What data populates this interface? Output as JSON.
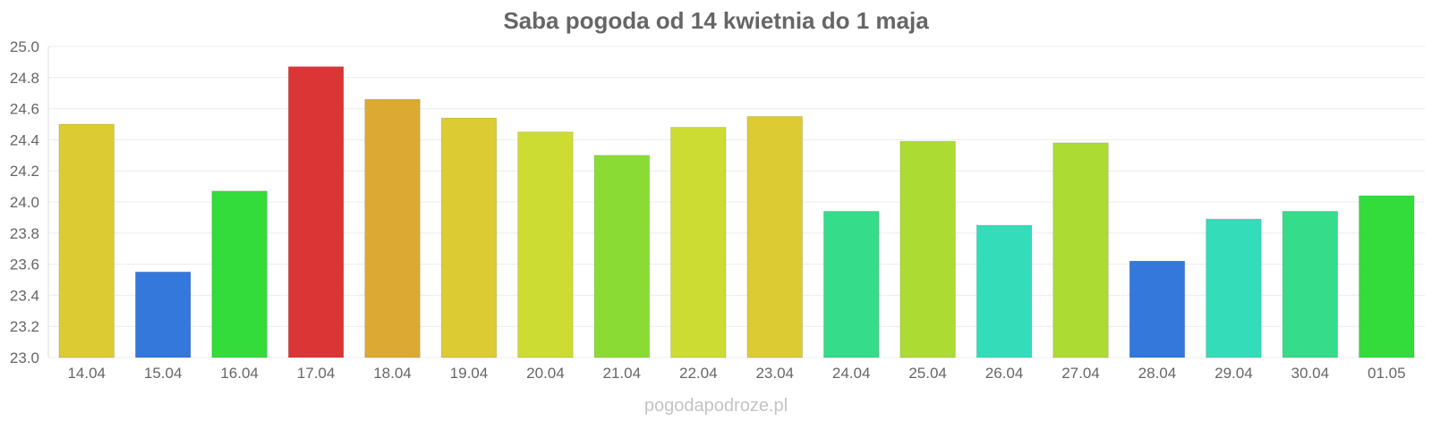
{
  "chart_data": {
    "type": "bar",
    "title": "Saba pogoda od 14 kwietnia do 1 maja",
    "xlabel": "",
    "ylabel": "",
    "ylim": [
      23.0,
      25.0
    ],
    "y_ticks": [
      "25.0",
      "24.8",
      "24.6",
      "24.4",
      "24.2",
      "24.0",
      "23.8",
      "23.6",
      "23.4",
      "23.2",
      "23.0"
    ],
    "grid": true,
    "legend": "none",
    "categories": [
      "14.04",
      "15.04",
      "16.04",
      "17.04",
      "18.04",
      "19.04",
      "20.04",
      "21.04",
      "22.04",
      "23.04",
      "24.04",
      "25.04",
      "26.04",
      "27.04",
      "28.04",
      "29.04",
      "30.04",
      "01.05"
    ],
    "values": [
      24.5,
      23.55,
      24.07,
      24.87,
      24.66,
      24.54,
      24.45,
      24.3,
      24.48,
      24.55,
      23.94,
      24.39,
      23.85,
      24.38,
      23.62,
      23.89,
      23.94,
      24.04
    ],
    "colors": [
      "#dccb33",
      "#3578dc",
      "#33dc3a",
      "#dc3535",
      "#dcaa33",
      "#dccb33",
      "#cddc33",
      "#8adc35",
      "#cddc33",
      "#dccb33",
      "#35dc8a",
      "#acdc33",
      "#35dcba",
      "#acdc33",
      "#3578dc",
      "#35dcba",
      "#35dc8a",
      "#33dc3a"
    ]
  },
  "watermark": "pogodapodroze.pl"
}
